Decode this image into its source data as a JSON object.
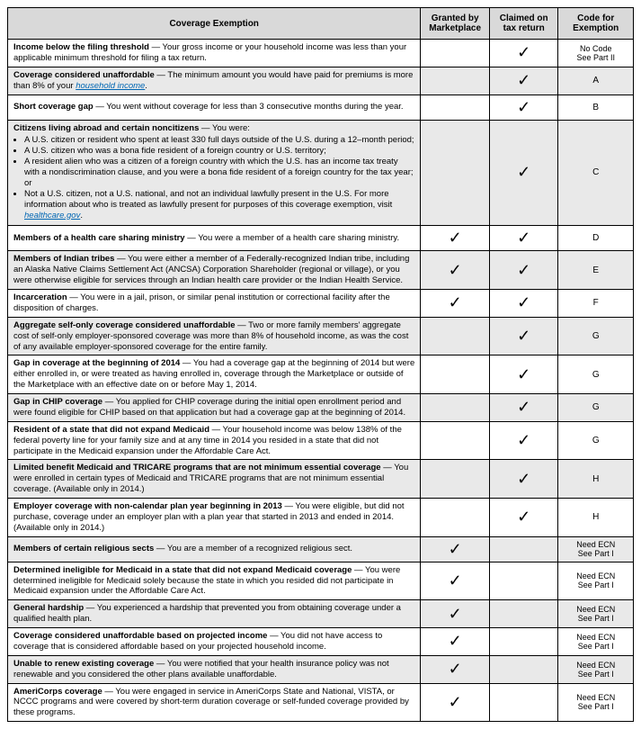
{
  "columns": {
    "exemption": "Coverage Exemption",
    "marketplace": "Granted by Marketplace",
    "taxreturn": "Claimed on tax return",
    "code": "Code for Exemption"
  },
  "widths": {
    "exemption": "66%",
    "marketplace": "11%",
    "taxreturn": "11%",
    "code": "12%"
  },
  "colors": {
    "header_bg": "#d9d9d9",
    "alt_bg": "#e9e9e9",
    "link": "#0066b3"
  },
  "checkmark": "✓",
  "rows": [
    {
      "alt": false,
      "lead": "Income below the filing threshold",
      "body": " — Your gross income or your household income was less than your applicable minimum threshold for filing a tax return.",
      "marketplace": false,
      "taxreturn": true,
      "code_lines": [
        "No Code",
        "See Part II"
      ]
    },
    {
      "alt": true,
      "lead": "Coverage considered unaffordable",
      "body": " — The minimum amount you would have paid for premiums is more than 8% of your ",
      "link_text": "household income",
      "link_suffix": ".",
      "marketplace": false,
      "taxreturn": true,
      "code_lines": [
        "A"
      ]
    },
    {
      "alt": false,
      "lead": "Short coverage gap",
      "body": " — You went without coverage for less than 3 consecutive months during the year.",
      "marketplace": false,
      "taxreturn": true,
      "code_lines": [
        "B"
      ]
    },
    {
      "alt": true,
      "lead": "Citizens living abroad and certain noncitizens",
      "body": " — You were:",
      "bullets": [
        "A U.S. citizen or resident who spent at least 330 full days outside of the U.S. during a 12–month period;",
        "A U.S. citizen who was a bona fide resident of a foreign country or U.S. territory;",
        "A resident alien who was a citizen of a foreign country with which the U.S. has an income tax treaty with a nondiscrimination clause, and you were a bona fide resident of a foreign country for the tax year; or",
        "Not a U.S. citizen, not a U.S. national, and not an individual lawfully present in the U.S. For more information about who is treated as lawfully present for purposes of this coverage exemption, visit "
      ],
      "bullet_link_text": "healthcare.gov",
      "bullet_link_suffix": ".",
      "marketplace": false,
      "taxreturn": true,
      "code_lines": [
        "C"
      ]
    },
    {
      "alt": false,
      "lead": "Members of a health care sharing ministry",
      "body": " — You were a member of a health care sharing ministry.",
      "marketplace": true,
      "taxreturn": true,
      "code_lines": [
        "D"
      ]
    },
    {
      "alt": true,
      "lead": "Members of Indian tribes",
      "body": " — You were either a member of a Federally-recognized Indian tribe, including an Alaska Native Claims Settlement Act (ANCSA) Corporation Shareholder (regional or village), or you were otherwise eligible for services through an Indian health care provider or the Indian Health Service.",
      "marketplace": true,
      "taxreturn": true,
      "code_lines": [
        "E"
      ]
    },
    {
      "alt": false,
      "lead": "Incarceration",
      "body": " — You were in a jail, prison, or similar penal institution or correctional facility after the disposition of charges.",
      "marketplace": true,
      "taxreturn": true,
      "code_lines": [
        "F"
      ]
    },
    {
      "alt": true,
      "lead": "Aggregate self-only coverage considered unaffordable",
      "body": " — Two or more family members' aggregate cost of self-only employer-sponsored coverage was more than 8% of household income, as was the cost of any available employer-sponsored coverage for the entire family.",
      "marketplace": false,
      "taxreturn": true,
      "code_lines": [
        "G"
      ]
    },
    {
      "alt": false,
      "lead": "Gap in coverage at the beginning of 2014",
      "body": " — You had a coverage gap at the beginning of 2014 but were either enrolled in, or were treated as having enrolled in, coverage through the Marketplace or outside of the Marketplace with an effective date on or before May 1, 2014.",
      "marketplace": false,
      "taxreturn": true,
      "code_lines": [
        "G"
      ]
    },
    {
      "alt": true,
      "lead": "Gap in CHIP coverage",
      "body": " — You applied for CHIP coverage during the initial open enrollment period and were found eligible for CHIP based on that application but had a coverage gap at the beginning of 2014.",
      "marketplace": false,
      "taxreturn": true,
      "code_lines": [
        "G"
      ]
    },
    {
      "alt": false,
      "lead": "Resident of a state that did not expand Medicaid",
      "body": " — Your household income was below 138% of the federal poverty line for your family size and at any time in 2014 you resided in a state that did not participate in the Medicaid expansion under the Affordable Care Act.",
      "marketplace": false,
      "taxreturn": true,
      "code_lines": [
        "G"
      ]
    },
    {
      "alt": true,
      "lead": "Limited benefit Medicaid and TRICARE programs that are not minimum essential coverage",
      "body": " — You were enrolled in certain types of Medicaid and TRICARE programs that are not minimum essential coverage. (Available only in 2014.)",
      "marketplace": false,
      "taxreturn": true,
      "code_lines": [
        "H"
      ]
    },
    {
      "alt": false,
      "lead": "Employer coverage with non-calendar plan year beginning in 2013",
      "body": " — You were eligible, but did not purchase, coverage under an employer plan with a plan year that started in 2013 and ended in 2014. (Available only in 2014.)",
      "marketplace": false,
      "taxreturn": true,
      "code_lines": [
        "H"
      ]
    },
    {
      "alt": true,
      "lead": "Members of certain religious sects",
      "body": " — You are a member of a recognized religious sect.",
      "marketplace": true,
      "taxreturn": false,
      "code_lines": [
        "Need ECN",
        "See Part I"
      ]
    },
    {
      "alt": false,
      "lead": "Determined ineligible for Medicaid in a state that did not expand Medicaid coverage",
      "body": " — You were determined ineligible for Medicaid solely because the state in which you resided did not participate in Medicaid expansion under the Affordable Care Act.",
      "marketplace": true,
      "taxreturn": false,
      "code_lines": [
        "Need ECN",
        "See Part I"
      ]
    },
    {
      "alt": true,
      "lead": "General hardship",
      "body": " — You experienced a hardship that prevented you from obtaining coverage under a qualified health plan.",
      "marketplace": true,
      "taxreturn": false,
      "code_lines": [
        "Need ECN",
        "See Part I"
      ]
    },
    {
      "alt": false,
      "lead": "Coverage considered unaffordable based on projected income",
      "body": " — You did not have access to coverage that is considered affordable based on your projected household income.",
      "marketplace": true,
      "taxreturn": false,
      "code_lines": [
        "Need ECN",
        "See Part I"
      ]
    },
    {
      "alt": true,
      "lead": "Unable to renew existing coverage",
      "body": " — You were notified that your health insurance policy was not renewable and you considered the other plans available unaffordable.",
      "marketplace": true,
      "taxreturn": false,
      "code_lines": [
        "Need ECN",
        "See Part I"
      ]
    },
    {
      "alt": false,
      "lead": "AmeriCorps coverage",
      "body": " — You were engaged in service in AmeriCorps State and National, VISTA, or NCCC programs and were covered by short-term duration coverage or self-funded coverage provided by these programs.",
      "marketplace": true,
      "taxreturn": false,
      "code_lines": [
        "Need ECN",
        "See Part I"
      ]
    }
  ]
}
